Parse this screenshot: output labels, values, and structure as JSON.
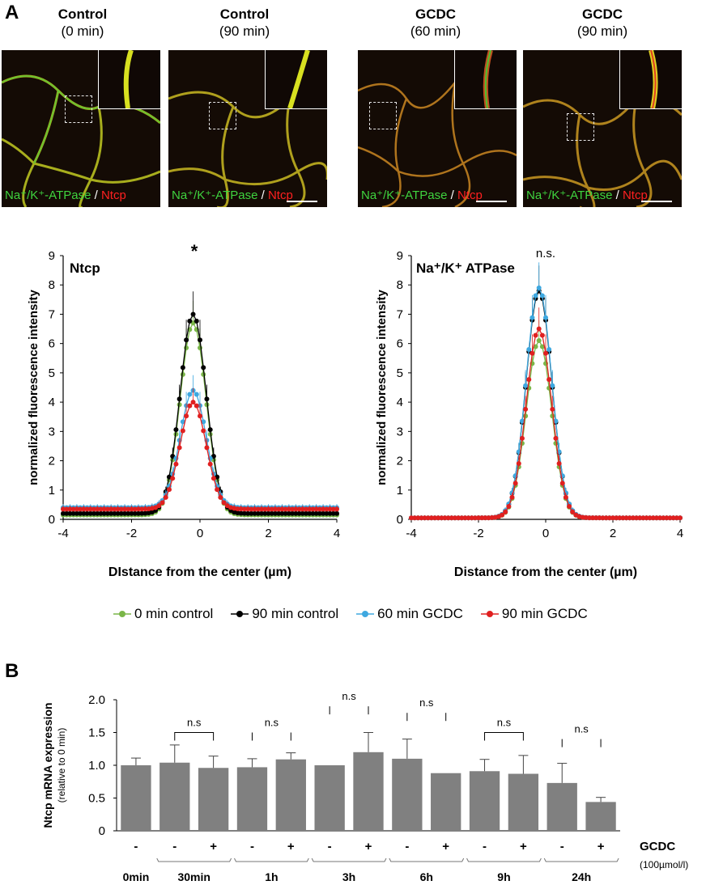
{
  "panels": {
    "a": "A",
    "b": "B"
  },
  "micrographs": [
    {
      "title1": "Control",
      "title2": "(0 min)"
    },
    {
      "title1": "Control",
      "title2": "(90 min)"
    },
    {
      "title1": "GCDC",
      "title2": "(60 min)"
    },
    {
      "title1": "GCDC",
      "title2": "(90 min)"
    }
  ],
  "stain_label": {
    "green": "Na⁺/K⁺-ATPase",
    "sep": " / ",
    "red": "Ntcp"
  },
  "colors": {
    "c0": "#7ab648",
    "c90": "#000000",
    "g60": "#3ea8e0",
    "g90": "#e02020",
    "bar": "#808080"
  },
  "legend": [
    "0 min control",
    "90 min control",
    "60 min GCDC",
    "90 min GCDC"
  ],
  "chart_data": [
    {
      "type": "line",
      "title": "Ntcp",
      "xlabel": "DIstance from the center (µm)",
      "ylabel": "normalized fluorescence intensity",
      "xlim": [
        -4,
        4
      ],
      "ylim": [
        0,
        9
      ],
      "xticks": [
        "-4",
        "-2",
        "0",
        "2",
        "4"
      ],
      "yticks": [
        "0",
        "1",
        "2",
        "3",
        "4",
        "5",
        "6",
        "7",
        "8",
        "9"
      ],
      "annotation": "*",
      "series": [
        {
          "name": "0 min control",
          "peak": 6.7,
          "base": 0.15
        },
        {
          "name": "90 min control",
          "peak": 7.0,
          "base": 0.2
        },
        {
          "name": "60 min GCDC",
          "peak": 4.4,
          "base": 0.4
        },
        {
          "name": "90 min GCDC",
          "peak": 4.0,
          "base": 0.35
        }
      ]
    },
    {
      "type": "line",
      "title": "Na⁺/K⁺ ATPase",
      "xlabel": "Distance from the center (µm)",
      "ylabel": "normalized fluorescence intensity",
      "xlim": [
        -4,
        4
      ],
      "ylim": [
        0,
        9
      ],
      "xticks": [
        "-4",
        "-2",
        "0",
        "2",
        "4"
      ],
      "yticks": [
        "0",
        "1",
        "2",
        "3",
        "4",
        "5",
        "6",
        "7",
        "8",
        "9"
      ],
      "annotation": "n.s.",
      "series": [
        {
          "name": "0 min control",
          "peak": 6.1,
          "base": 0.05
        },
        {
          "name": "90 min control",
          "peak": 7.8,
          "base": 0.05
        },
        {
          "name": "60 min GCDC",
          "peak": 7.9,
          "base": 0.05
        },
        {
          "name": "90 min GCDC",
          "peak": 6.5,
          "base": 0.05
        }
      ]
    },
    {
      "type": "bar",
      "ylabel": "Ntcp mRNA expression",
      "ylabel_sub": "(relative to 0 min)",
      "ylim": [
        0,
        2.0
      ],
      "yticks": [
        "0",
        "0.5",
        "1.0",
        "1.5",
        "2.0"
      ],
      "values": [
        1.0,
        1.04,
        0.96,
        0.97,
        1.09,
        1.0,
        1.2,
        1.1,
        0.88,
        0.91,
        0.87,
        0.73,
        0.44
      ],
      "errors": [
        0.11,
        0.27,
        0.18,
        0.13,
        0.1,
        0.0,
        0.3,
        0.3,
        0.0,
        0.18,
        0.28,
        0.3,
        0.07
      ],
      "gcdc_signs": [
        "-",
        "-",
        "+",
        "-",
        "+",
        "-",
        "+",
        "-",
        "+",
        "-",
        "+",
        "-",
        "+"
      ],
      "groups": [
        "0min",
        "30min",
        "1h",
        "3h",
        "6h",
        "9h",
        "24h"
      ],
      "gcdc_label": "GCDC",
      "gcdc_unit": "(100µmol/l)",
      "ns_labels": [
        "n.s",
        "n.s",
        "n.s",
        "n.s",
        "n.s",
        "n.s"
      ]
    }
  ]
}
